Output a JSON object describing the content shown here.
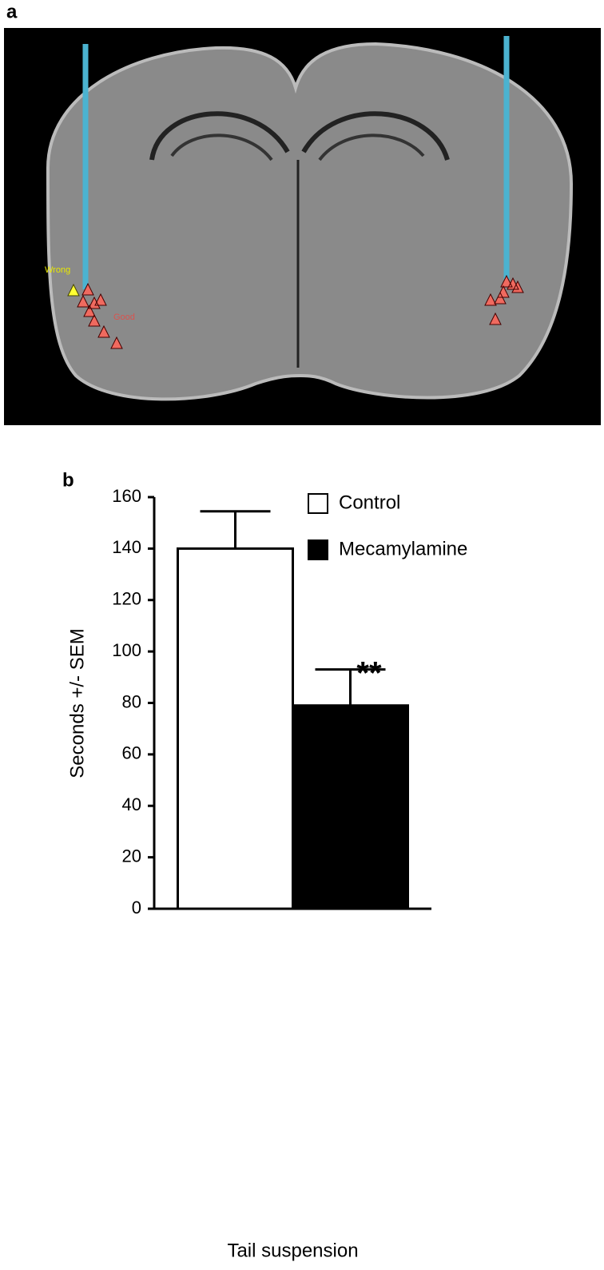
{
  "panel_labels": [
    "a",
    "b"
  ],
  "image_annotations": [
    "Wrong",
    "Good"
  ],
  "chart_data": {
    "type": "bar",
    "ylabel": "Seconds +/- SEM",
    "categories": [
      "Tail suspension"
    ],
    "series": [
      {
        "name": "Control",
        "color": "#ffffff",
        "values": [
          140
        ],
        "errors": [
          14.5
        ]
      },
      {
        "name": "Mecamylamine",
        "color": "#000000",
        "values": [
          79
        ],
        "errors": [
          14
        ]
      }
    ],
    "annotation": "**",
    "ylim": [
      0,
      160
    ],
    "yticks": [
      0,
      20,
      40,
      60,
      80,
      100,
      120,
      140,
      160
    ],
    "legend": "top-right",
    "grid": false
  }
}
